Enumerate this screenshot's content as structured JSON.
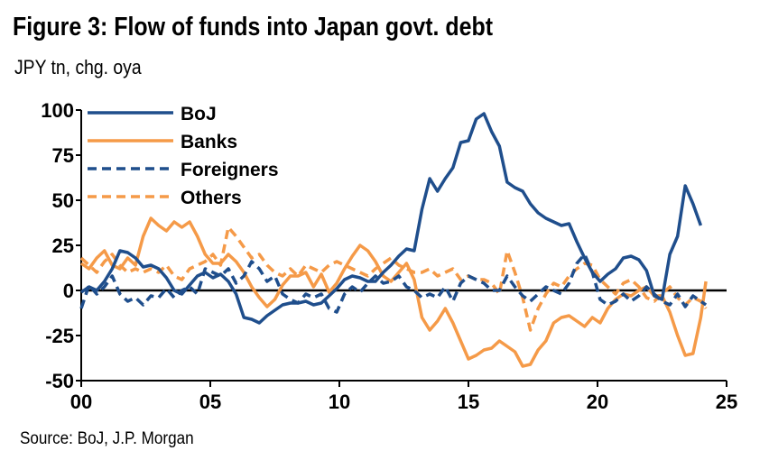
{
  "title": "Figure 3: Flow of funds into Japan govt. debt",
  "subtitle": "JPY tn, chg. oya",
  "source": "Source: BoJ, J.P. Morgan",
  "chart_data": {
    "type": "line",
    "title": "Figure 3: Flow of funds into Japan govt. debt",
    "ylabel": "JPY tn, chg. oya",
    "xlabel": "",
    "xlim": [
      0,
      25
    ],
    "ylim": [
      -50,
      100
    ],
    "x_ticks": [
      "00",
      "05",
      "10",
      "15",
      "20",
      "25"
    ],
    "x_tick_values": [
      0,
      5,
      10,
      15,
      20,
      25
    ],
    "y_ticks": [
      "100",
      "75",
      "50",
      "25",
      "0",
      "-25",
      "-50"
    ],
    "y_tick_values": [
      100,
      75,
      50,
      25,
      0,
      -25,
      -50
    ],
    "grid": false,
    "legend_position": "top-left",
    "series": [
      {
        "name": "BoJ",
        "color": "#1f4e8c",
        "style": "solid",
        "x": [
          0.0,
          0.3,
          0.6,
          0.9,
          1.2,
          1.5,
          1.8,
          2.1,
          2.4,
          2.7,
          3.0,
          3.3,
          3.6,
          3.9,
          4.2,
          4.5,
          4.8,
          5.1,
          5.4,
          5.7,
          6.0,
          6.3,
          6.6,
          6.9,
          7.2,
          7.5,
          7.8,
          8.1,
          8.4,
          8.7,
          9.0,
          9.3,
          9.6,
          9.9,
          10.2,
          10.5,
          10.8,
          11.1,
          11.4,
          11.7,
          12.0,
          12.3,
          12.6,
          12.9,
          13.2,
          13.5,
          13.8,
          14.1,
          14.4,
          14.7,
          15.0,
          15.3,
          15.6,
          15.9,
          16.2,
          16.5,
          16.8,
          17.1,
          17.4,
          17.7,
          18.0,
          18.3,
          18.6,
          18.9,
          19.2,
          19.5,
          19.8,
          20.1,
          20.4,
          20.7,
          21.0,
          21.3,
          21.6,
          21.9,
          22.2,
          22.5,
          22.8,
          23.1,
          23.4,
          23.7,
          24.0
        ],
        "values": [
          -1,
          2,
          0,
          5,
          12,
          22,
          21,
          18,
          13,
          14,
          12,
          7,
          0,
          -2,
          3,
          8,
          10,
          7,
          9,
          5,
          -2,
          -15,
          -16,
          -18,
          -14,
          -11,
          -8,
          -7,
          -7,
          -6,
          -8,
          -7,
          -3,
          1,
          6,
          8,
          7,
          5,
          5,
          10,
          14,
          19,
          23,
          22,
          45,
          62,
          55,
          62,
          68,
          82,
          83,
          95,
          98,
          88,
          80,
          60,
          57,
          55,
          48,
          43,
          40,
          38,
          36,
          37,
          27,
          18,
          10,
          5,
          9,
          12,
          18,
          19,
          17,
          11,
          -3,
          -5,
          20,
          30,
          58,
          48,
          36
        ]
      },
      {
        "name": "Banks",
        "color": "#f59a48",
        "style": "solid",
        "x": [
          0.0,
          0.3,
          0.6,
          0.9,
          1.2,
          1.5,
          1.8,
          2.1,
          2.4,
          2.7,
          3.0,
          3.3,
          3.6,
          3.9,
          4.2,
          4.5,
          4.8,
          5.1,
          5.4,
          5.7,
          6.0,
          6.3,
          6.6,
          6.9,
          7.2,
          7.5,
          7.8,
          8.1,
          8.4,
          8.7,
          9.0,
          9.3,
          9.6,
          9.9,
          10.2,
          10.5,
          10.8,
          11.1,
          11.4,
          11.7,
          12.0,
          12.3,
          12.6,
          12.9,
          13.2,
          13.5,
          13.8,
          14.1,
          14.4,
          14.7,
          15.0,
          15.3,
          15.6,
          15.9,
          16.2,
          16.5,
          16.8,
          17.1,
          17.4,
          17.7,
          18.0,
          18.3,
          18.6,
          18.9,
          19.2,
          19.5,
          19.8,
          20.1,
          20.4,
          20.7,
          21.0,
          21.3,
          21.6,
          21.9,
          22.2,
          22.5,
          22.8,
          23.1,
          23.4,
          23.7,
          24.0,
          24.2
        ],
        "values": [
          15,
          12,
          18,
          22,
          14,
          12,
          18,
          14,
          30,
          40,
          36,
          33,
          38,
          35,
          38,
          30,
          20,
          15,
          15,
          20,
          16,
          10,
          2,
          -4,
          -9,
          -5,
          3,
          8,
          8,
          10,
          2,
          9,
          -1,
          4,
          12,
          19,
          25,
          22,
          16,
          8,
          5,
          10,
          15,
          6,
          -15,
          -22,
          -17,
          -10,
          -18,
          -28,
          -38,
          -36,
          -33,
          -32,
          -28,
          -31,
          -34,
          -42,
          -41,
          -33,
          -28,
          -18,
          -15,
          -14,
          -17,
          -20,
          -15,
          -18,
          -10,
          -5,
          -2,
          -3,
          0,
          2,
          -3,
          -3,
          -12,
          -25,
          -36,
          -35,
          -15,
          5
        ]
      },
      {
        "name": "Foreigners",
        "color": "#1f4e8c",
        "style": "dashed",
        "x": [
          0.0,
          0.3,
          0.6,
          0.9,
          1.2,
          1.5,
          1.8,
          2.1,
          2.4,
          2.7,
          3.0,
          3.3,
          3.6,
          3.9,
          4.2,
          4.5,
          4.8,
          5.1,
          5.4,
          5.7,
          6.0,
          6.3,
          6.6,
          6.9,
          7.2,
          7.5,
          7.8,
          8.1,
          8.4,
          8.7,
          9.0,
          9.3,
          9.6,
          9.9,
          10.2,
          10.5,
          10.8,
          11.1,
          11.4,
          11.7,
          12.0,
          12.3,
          12.6,
          12.9,
          13.2,
          13.5,
          13.8,
          14.1,
          14.4,
          14.7,
          15.0,
          15.3,
          15.6,
          15.9,
          16.2,
          16.5,
          16.8,
          17.1,
          17.4,
          17.7,
          18.0,
          18.3,
          18.6,
          18.9,
          19.2,
          19.5,
          19.8,
          20.1,
          20.4,
          20.7,
          21.0,
          21.3,
          21.6,
          21.9,
          22.2,
          22.5,
          22.8,
          23.1,
          23.4,
          23.7,
          24.0,
          24.2
        ],
        "values": [
          -10,
          3,
          -2,
          2,
          8,
          -2,
          -6,
          -4,
          -8,
          -3,
          -4,
          1,
          -4,
          0,
          2,
          -2,
          12,
          10,
          8,
          12,
          4,
          8,
          16,
          12,
          5,
          8,
          -2,
          -5,
          -7,
          -2,
          -4,
          -2,
          -10,
          -12,
          -2,
          2,
          -1,
          4,
          8,
          4,
          5,
          8,
          2,
          0,
          -4,
          -2,
          -4,
          2,
          -6,
          4,
          8,
          6,
          4,
          0,
          0,
          8,
          2,
          -3,
          -6,
          -2,
          2,
          0,
          -2,
          4,
          15,
          20,
          10,
          -5,
          -8,
          -6,
          -2,
          -6,
          -3,
          2,
          -2,
          -6,
          -8,
          -2,
          -9,
          -3,
          -6,
          -8
        ]
      },
      {
        "name": "Others",
        "color": "#f59a48",
        "style": "dashed",
        "x": [
          0.0,
          0.3,
          0.6,
          0.9,
          1.2,
          1.5,
          1.8,
          2.1,
          2.4,
          2.7,
          3.0,
          3.3,
          3.6,
          3.9,
          4.2,
          4.5,
          4.8,
          5.1,
          5.4,
          5.7,
          6.0,
          6.3,
          6.6,
          6.9,
          7.2,
          7.5,
          7.8,
          8.1,
          8.4,
          8.7,
          9.0,
          9.3,
          9.6,
          9.9,
          10.2,
          10.5,
          10.8,
          11.1,
          11.4,
          11.7,
          12.0,
          12.3,
          12.6,
          12.9,
          13.2,
          13.5,
          13.8,
          14.1,
          14.4,
          14.7,
          15.0,
          15.3,
          15.6,
          15.9,
          16.2,
          16.5,
          16.8,
          17.1,
          17.4,
          17.7,
          18.0,
          18.3,
          18.6,
          18.9,
          19.2,
          19.5,
          19.8,
          20.1,
          20.4,
          20.7,
          21.0,
          21.3,
          21.6,
          21.9,
          22.2,
          22.5,
          22.8,
          23.1,
          23.4,
          23.7,
          24.0,
          24.2
        ],
        "values": [
          18,
          14,
          10,
          16,
          20,
          14,
          10,
          12,
          10,
          12,
          10,
          14,
          8,
          6,
          12,
          14,
          16,
          20,
          14,
          35,
          30,
          24,
          18,
          20,
          14,
          10,
          8,
          12,
          8,
          14,
          12,
          10,
          14,
          16,
          14,
          12,
          10,
          8,
          12,
          15,
          18,
          14,
          12,
          10,
          10,
          12,
          8,
          10,
          12,
          6,
          8,
          6,
          6,
          4,
          -2,
          22,
          10,
          -4,
          -22,
          -10,
          -2,
          4,
          2,
          8,
          12,
          15,
          14,
          6,
          2,
          -2,
          4,
          6,
          2,
          -4,
          -6,
          -2,
          2,
          -4,
          -8,
          -4,
          -6,
          -10
        ]
      }
    ]
  }
}
